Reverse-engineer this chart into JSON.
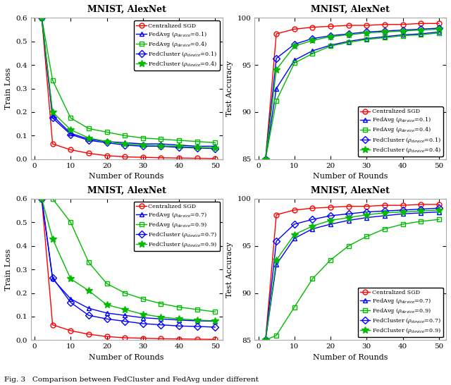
{
  "rounds": [
    2,
    5,
    10,
    15,
    20,
    25,
    30,
    35,
    40,
    45,
    50
  ],
  "title": "MNIST, AlexNet",
  "xlabel": "Number of Rounds",
  "ylabel_loss": "Train Loss",
  "ylabel_acc": "Test Accuracy",
  "fig_caption": "Fig. 3   Comparison between FedCluster and FedAvg under different",
  "plot1_loss": {
    "centralized_sgd": [
      0.6,
      0.065,
      0.04,
      0.025,
      0.015,
      0.01,
      0.008,
      0.006,
      0.005,
      0.004,
      0.003
    ],
    "fedavg_01": [
      0.6,
      0.185,
      0.11,
      0.085,
      0.075,
      0.07,
      0.065,
      0.065,
      0.06,
      0.055,
      0.055
    ],
    "fedavg_04": [
      0.6,
      0.335,
      0.175,
      0.13,
      0.115,
      0.1,
      0.09,
      0.085,
      0.08,
      0.075,
      0.07
    ],
    "fedcluster_01": [
      0.6,
      0.175,
      0.105,
      0.08,
      0.07,
      0.06,
      0.055,
      0.055,
      0.05,
      0.048,
      0.045
    ],
    "fedcluster_04": [
      0.6,
      0.2,
      0.125,
      0.09,
      0.075,
      0.065,
      0.06,
      0.057,
      0.055,
      0.05,
      0.048
    ]
  },
  "plot2_acc": {
    "centralized_sgd": [
      85.0,
      98.3,
      98.8,
      99.0,
      99.1,
      99.2,
      99.2,
      99.3,
      99.3,
      99.4,
      99.4
    ],
    "fedavg_01": [
      85.0,
      92.5,
      95.5,
      96.5,
      97.1,
      97.5,
      97.8,
      98.0,
      98.2,
      98.3,
      98.5
    ],
    "fedavg_04": [
      85.0,
      91.2,
      95.2,
      96.2,
      97.0,
      97.4,
      97.7,
      97.9,
      98.1,
      98.2,
      98.4
    ],
    "fedcluster_01": [
      85.0,
      95.7,
      97.2,
      97.8,
      98.1,
      98.3,
      98.5,
      98.6,
      98.7,
      98.8,
      98.9
    ],
    "fedcluster_04": [
      85.0,
      94.5,
      97.0,
      97.6,
      98.0,
      98.2,
      98.4,
      98.5,
      98.6,
      98.7,
      98.8
    ]
  },
  "plot3_loss": {
    "centralized_sgd": [
      0.6,
      0.065,
      0.04,
      0.025,
      0.015,
      0.01,
      0.008,
      0.006,
      0.005,
      0.004,
      0.003
    ],
    "fedavg_07": [
      0.6,
      0.26,
      0.175,
      0.135,
      0.115,
      0.105,
      0.095,
      0.09,
      0.085,
      0.082,
      0.08
    ],
    "fedavg_09": [
      0.6,
      0.6,
      0.5,
      0.33,
      0.24,
      0.2,
      0.175,
      0.155,
      0.14,
      0.13,
      0.12
    ],
    "fedcluster_07": [
      0.6,
      0.265,
      0.16,
      0.105,
      0.09,
      0.08,
      0.07,
      0.065,
      0.06,
      0.058,
      0.055
    ],
    "fedcluster_09": [
      0.6,
      0.43,
      0.26,
      0.21,
      0.15,
      0.13,
      0.11,
      0.098,
      0.09,
      0.085,
      0.082
    ]
  },
  "plot4_acc": {
    "centralized_sgd": [
      85.0,
      98.3,
      98.8,
      99.0,
      99.1,
      99.2,
      99.2,
      99.3,
      99.3,
      99.4,
      99.4
    ],
    "fedavg_07": [
      85.0,
      93.0,
      95.8,
      96.8,
      97.3,
      97.7,
      98.0,
      98.2,
      98.4,
      98.5,
      98.6
    ],
    "fedavg_09": [
      85.0,
      85.5,
      88.5,
      91.5,
      93.5,
      95.0,
      96.0,
      96.8,
      97.3,
      97.6,
      97.8
    ],
    "fedcluster_07": [
      85.0,
      95.5,
      97.3,
      97.8,
      98.2,
      98.4,
      98.6,
      98.7,
      98.8,
      98.9,
      99.0
    ],
    "fedcluster_09": [
      85.0,
      93.5,
      96.2,
      97.1,
      97.7,
      98.0,
      98.3,
      98.5,
      98.6,
      98.7,
      98.8
    ]
  },
  "colors": {
    "red": "#FF0000",
    "blue": "#0000FF",
    "green": "#00BB00"
  },
  "legend1_labels": [
    "Centralized SGD",
    "FedAvg ($\\rho_{device}$=0.1)",
    "FedAvg ($\\rho_{device}$=0.4)",
    "FedCluster ($\\rho_{device}$=0.1)",
    "FedCluster ($\\rho_{device}$=0.4)"
  ],
  "legend2_labels": [
    "Centralized SGD",
    "FedAvg ($\\rho_{device}$=0.7)",
    "FedAvg ($\\rho_{device}$=0.9)",
    "FedCluster ($\\rho_{device}$=0.7)",
    "FedCluster ($\\rho_{device}$=0.9)"
  ],
  "ylim_loss": [
    0,
    0.6
  ],
  "ylim_acc": [
    85,
    100
  ],
  "yticks_loss": [
    0,
    0.1,
    0.2,
    0.3,
    0.4,
    0.5,
    0.6
  ],
  "yticks_acc": [
    85,
    90,
    95,
    100
  ],
  "xticks": [
    0,
    10,
    20,
    30,
    40,
    50
  ]
}
